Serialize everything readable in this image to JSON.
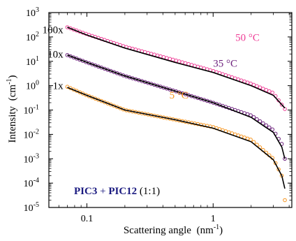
{
  "chart_data": {
    "type": "scatter",
    "xlabel_main": "Scattering angle",
    "xlabel_unit_open": "(nm",
    "xlabel_unit_exp": "-1",
    "xlabel_unit_close": ")",
    "ylabel_main": "Intensity",
    "ylabel_unit_open": "(cm",
    "ylabel_unit_exp": "-1",
    "ylabel_unit_close": ")",
    "x_scale": "log",
    "y_scale": "log",
    "xlim": [
      0.05,
      4.2
    ],
    "ylim": [
      1e-05,
      1000
    ],
    "x_ticks": [
      {
        "value": 0.1,
        "label": "0.1"
      },
      {
        "value": 1,
        "label": "1"
      }
    ],
    "y_ticks": [
      {
        "value": 1e-05,
        "base": "10",
        "exp": "-5"
      },
      {
        "value": 0.0001,
        "base": "10",
        "exp": "-4"
      },
      {
        "value": 0.001,
        "base": "10",
        "exp": "-3"
      },
      {
        "value": 0.01,
        "base": "10",
        "exp": "-2"
      },
      {
        "value": 0.1,
        "base": "10",
        "exp": "-1"
      },
      {
        "value": 1,
        "base": "10",
        "exp": "0"
      },
      {
        "value": 10,
        "base": "10",
        "exp": "1"
      },
      {
        "value": 100,
        "base": "10",
        "exp": "2"
      },
      {
        "value": 1000,
        "base": "10",
        "exp": "3"
      }
    ],
    "grid": false,
    "legend_text": {
      "part1": "PIC3",
      "plus": " + ",
      "part2": "PIC12",
      "ratio": " (1:1)",
      "color": "#1a1a80"
    },
    "series": [
      {
        "name": "50 °C",
        "multiplier": "100x",
        "color": "#ee3d96",
        "fit_color": "#000000",
        "data": [
          [
            0.07,
            250
          ],
          [
            0.1,
            130
          ],
          [
            0.2,
            40
          ],
          [
            0.5,
            11
          ],
          [
            1,
            4
          ],
          [
            2,
            1.2
          ],
          [
            3,
            0.5
          ],
          [
            3.7,
            0.11
          ]
        ],
        "fit": [
          [
            0.07,
            250
          ],
          [
            0.1,
            120
          ],
          [
            0.2,
            35
          ],
          [
            0.5,
            9
          ],
          [
            1,
            3.5
          ],
          [
            2,
            1
          ],
          [
            3,
            0.4
          ],
          [
            3.7,
            0.12
          ]
        ]
      },
      {
        "name": "35 °C",
        "multiplier": "10x",
        "color": "#6b1f7c",
        "fit_color": "#000000",
        "data": [
          [
            0.07,
            18
          ],
          [
            0.1,
            9
          ],
          [
            0.2,
            2.5
          ],
          [
            0.5,
            0.6
          ],
          [
            1,
            0.2
          ],
          [
            2,
            0.06
          ],
          [
            3,
            0.015
          ],
          [
            3.5,
            0.004
          ],
          [
            3.7,
            0.001
          ]
        ],
        "fit": [
          [
            0.07,
            18
          ],
          [
            0.1,
            9
          ],
          [
            0.2,
            2.5
          ],
          [
            0.5,
            0.6
          ],
          [
            1,
            0.2
          ],
          [
            2,
            0.05
          ],
          [
            3,
            0.012
          ],
          [
            3.5,
            0.003
          ],
          [
            3.7,
            0.001
          ]
        ]
      },
      {
        "name": "5 °C",
        "multiplier": "1x",
        "color": "#f7941d",
        "fit_color": "#000000",
        "data": [
          [
            0.07,
            0.9
          ],
          [
            0.1,
            0.4
          ],
          [
            0.2,
            0.1
          ],
          [
            0.5,
            0.04
          ],
          [
            1,
            0.02
          ],
          [
            2,
            0.006
          ],
          [
            3,
            0.001
          ],
          [
            3.5,
            0.0002
          ],
          [
            3.7,
            2e-05
          ]
        ],
        "fit": [
          [
            0.07,
            0.85
          ],
          [
            0.1,
            0.4
          ],
          [
            0.2,
            0.1
          ],
          [
            0.5,
            0.04
          ],
          [
            1,
            0.018
          ],
          [
            2,
            0.005
          ],
          [
            3,
            0.0009
          ],
          [
            3.5,
            0.0002
          ],
          [
            3.7,
            6e-05
          ]
        ]
      }
    ],
    "series_label_positions": [
      [
        1.5,
        70
      ],
      [
        1.0,
        6
      ],
      [
        0.45,
        0.3
      ]
    ],
    "multiplier_label_positions": [
      [
        0.065,
        200
      ],
      [
        0.065,
        20
      ],
      [
        0.065,
        1
      ]
    ]
  }
}
